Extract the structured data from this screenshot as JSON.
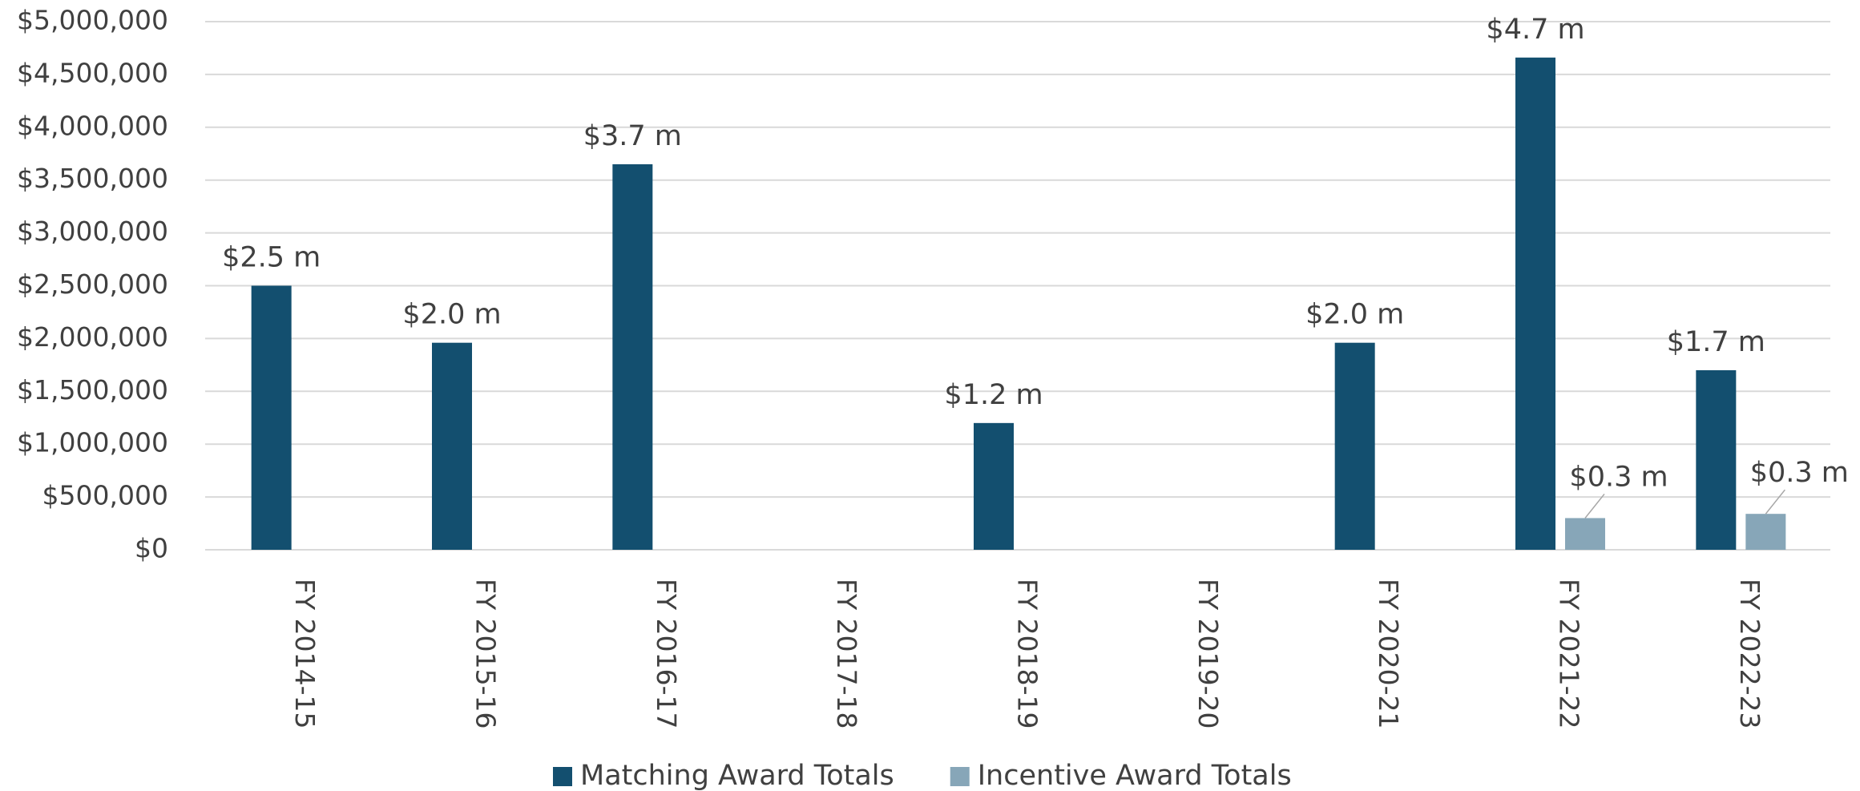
{
  "chart_data": {
    "type": "bar",
    "categories": [
      "FY 2014-15",
      "FY 2015-16",
      "FY 2016-17",
      "FY 2017-18",
      "FY 2018-19",
      "FY 2019-20",
      "FY 2020-21",
      "FY 2021-22",
      "FY 2022-23"
    ],
    "series": [
      {
        "name": "Matching Award Totals",
        "color": "#134f6f",
        "values": [
          2500000,
          1960000,
          3650000,
          null,
          1200000,
          null,
          1960000,
          4660000,
          1700000
        ],
        "value_labels": [
          "$2.5 m",
          "$2.0 m",
          "$3.7 m",
          null,
          "$1.2 m",
          null,
          "$2.0 m",
          "$4.7 m",
          "$1.7 m"
        ]
      },
      {
        "name": "Incentive Award Totals",
        "color": "#87a6b8",
        "values": [
          null,
          null,
          null,
          null,
          null,
          null,
          null,
          300000,
          340000
        ],
        "value_labels": [
          null,
          null,
          null,
          null,
          null,
          null,
          null,
          "$0.3 m",
          "$0.3 m"
        ]
      }
    ],
    "ylim": [
      0,
      5000000
    ],
    "yticks": [
      {
        "value": 0,
        "label": "$0"
      },
      {
        "value": 500000,
        "label": "$500,000"
      },
      {
        "value": 1000000,
        "label": "$1,000,000"
      },
      {
        "value": 1500000,
        "label": "$1,500,000"
      },
      {
        "value": 2000000,
        "label": "$2,000,000"
      },
      {
        "value": 2500000,
        "label": "$2,500,000"
      },
      {
        "value": 3000000,
        "label": "$3,000,000"
      },
      {
        "value": 3500000,
        "label": "$3,500,000"
      },
      {
        "value": 4000000,
        "label": "$4,000,000"
      },
      {
        "value": 4500000,
        "label": "$4,500,000"
      },
      {
        "value": 5000000,
        "label": "$5,000,000"
      }
    ],
    "grid": true,
    "legend": "bottom"
  }
}
